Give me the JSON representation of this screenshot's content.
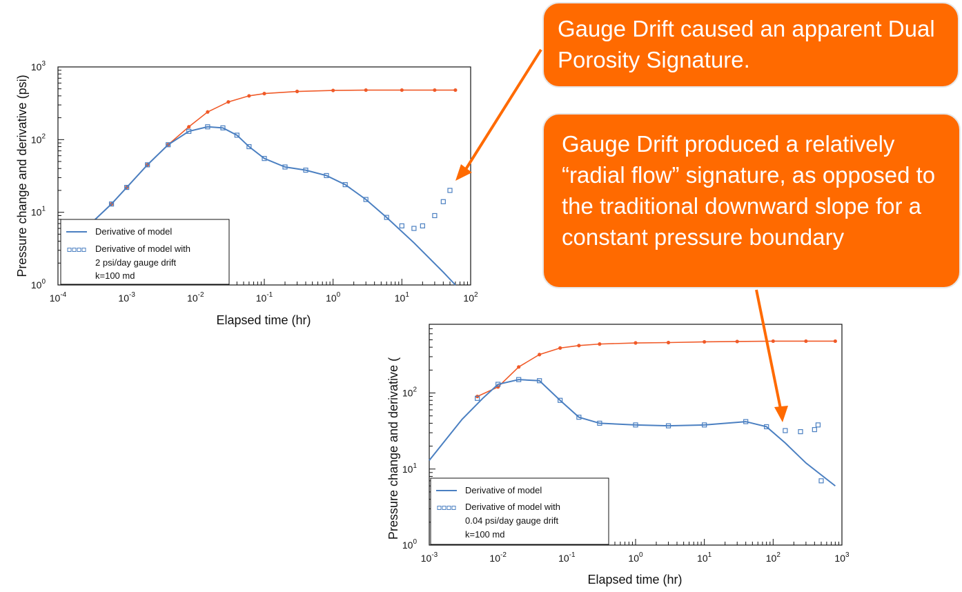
{
  "colors": {
    "accent": "#ff6a00",
    "model_line": "#4a7fc1",
    "pressure": "#f05a28"
  },
  "callouts": {
    "top": "Gauge Drift caused an apparent Dual Porosity Signature.",
    "bottom": "Gauge Drift produced a relatively “radial flow” signature, as opposed to the traditional downward slope for a constant pressure boundary"
  },
  "chart_data": [
    {
      "type": "line",
      "xlabel": "Elapsed time (hr)",
      "ylabel": "Pressure change and derivative (psi)",
      "xscale": "log",
      "yscale": "log",
      "xlim": [
        0.0001,
        100
      ],
      "ylim": [
        1,
        1000
      ],
      "xticks": [
        "10-4",
        "10-3",
        "10-2",
        "10-1",
        "100",
        "101",
        "102"
      ],
      "yticks": [
        "100",
        "101",
        "102",
        "103"
      ],
      "legend": {
        "position": "bottom-left",
        "entries": [
          "Derivative of model",
          "Derivative of model with",
          "2 psi/day gauge drift",
          "k=100 md"
        ]
      },
      "series": [
        {
          "name": "Pressure change",
          "style": "orange-markers",
          "x": [
            0.0003,
            0.0006,
            0.001,
            0.002,
            0.004,
            0.008,
            0.015,
            0.03,
            0.06,
            0.1,
            0.3,
            1,
            3,
            10,
            30,
            60
          ],
          "y": [
            7,
            13,
            22,
            45,
            85,
            150,
            240,
            330,
            400,
            430,
            460,
            475,
            480,
            480,
            480,
            480
          ]
        },
        {
          "name": "Derivative of model",
          "style": "blue-line",
          "x": [
            0.0003,
            0.0006,
            0.001,
            0.002,
            0.004,
            0.008,
            0.015,
            0.025,
            0.04,
            0.06,
            0.1,
            0.2,
            0.4,
            0.8,
            1.5,
            3,
            6,
            15,
            40,
            60
          ],
          "y": [
            7,
            13,
            22,
            45,
            85,
            130,
            150,
            145,
            115,
            80,
            55,
            42,
            38,
            32,
            24,
            15,
            8.5,
            3.8,
            1.5,
            1
          ]
        },
        {
          "name": "Derivative of model with 2 psi/day gauge drift",
          "style": "blue-squares",
          "x": [
            0.0003,
            0.0006,
            0.001,
            0.002,
            0.004,
            0.008,
            0.015,
            0.025,
            0.04,
            0.06,
            0.1,
            0.2,
            0.4,
            0.8,
            1.5,
            3,
            6,
            10,
            15,
            20,
            30,
            40,
            50
          ],
          "y": [
            7,
            13,
            22,
            45,
            85,
            130,
            150,
            145,
            115,
            80,
            55,
            42,
            38,
            32,
            24,
            15,
            8.5,
            6.5,
            6,
            6.5,
            9,
            14,
            20
          ]
        }
      ]
    },
    {
      "type": "line",
      "xlabel": "Elapsed time (hr)",
      "ylabel": "Pressure change and derivative (",
      "xscale": "log",
      "yscale": "log",
      "xlim": [
        0.001,
        1000
      ],
      "ylim": [
        1,
        800
      ],
      "xticks": [
        "10-3",
        "10-2",
        "10-1",
        "100",
        "101",
        "102",
        "103"
      ],
      "yticks": [
        "100",
        "101",
        "102"
      ],
      "legend": {
        "position": "bottom-left",
        "entries": [
          "Derivative of model",
          "Derivative of model with",
          "0.04 psi/day gauge drift",
          "k=100 md"
        ]
      },
      "series": [
        {
          "name": "Pressure change",
          "style": "orange-markers",
          "x": [
            0.005,
            0.01,
            0.02,
            0.04,
            0.08,
            0.15,
            0.3,
            1,
            3,
            10,
            30,
            100,
            300,
            800
          ],
          "y": [
            90,
            120,
            220,
            320,
            390,
            420,
            440,
            455,
            460,
            470,
            475,
            480,
            480,
            480
          ]
        },
        {
          "name": "Derivative of model",
          "style": "blue-line",
          "x": [
            0.001,
            0.003,
            0.006,
            0.01,
            0.02,
            0.04,
            0.08,
            0.15,
            0.3,
            1,
            3,
            10,
            40,
            80,
            150,
            300,
            800
          ],
          "y": [
            13,
            45,
            85,
            130,
            150,
            145,
            80,
            48,
            40,
            38,
            37,
            38,
            42,
            36,
            22,
            12,
            6
          ]
        },
        {
          "name": "Derivative of model with 0.04 psi/day gauge drift",
          "style": "blue-squares",
          "x": [
            0.005,
            0.01,
            0.02,
            0.04,
            0.08,
            0.15,
            0.3,
            1,
            3,
            10,
            40,
            80,
            150,
            250,
            400,
            450,
            500
          ],
          "y": [
            85,
            130,
            150,
            145,
            80,
            48,
            40,
            38,
            37,
            38,
            42,
            36,
            32,
            31,
            33,
            38,
            7
          ]
        }
      ]
    }
  ]
}
